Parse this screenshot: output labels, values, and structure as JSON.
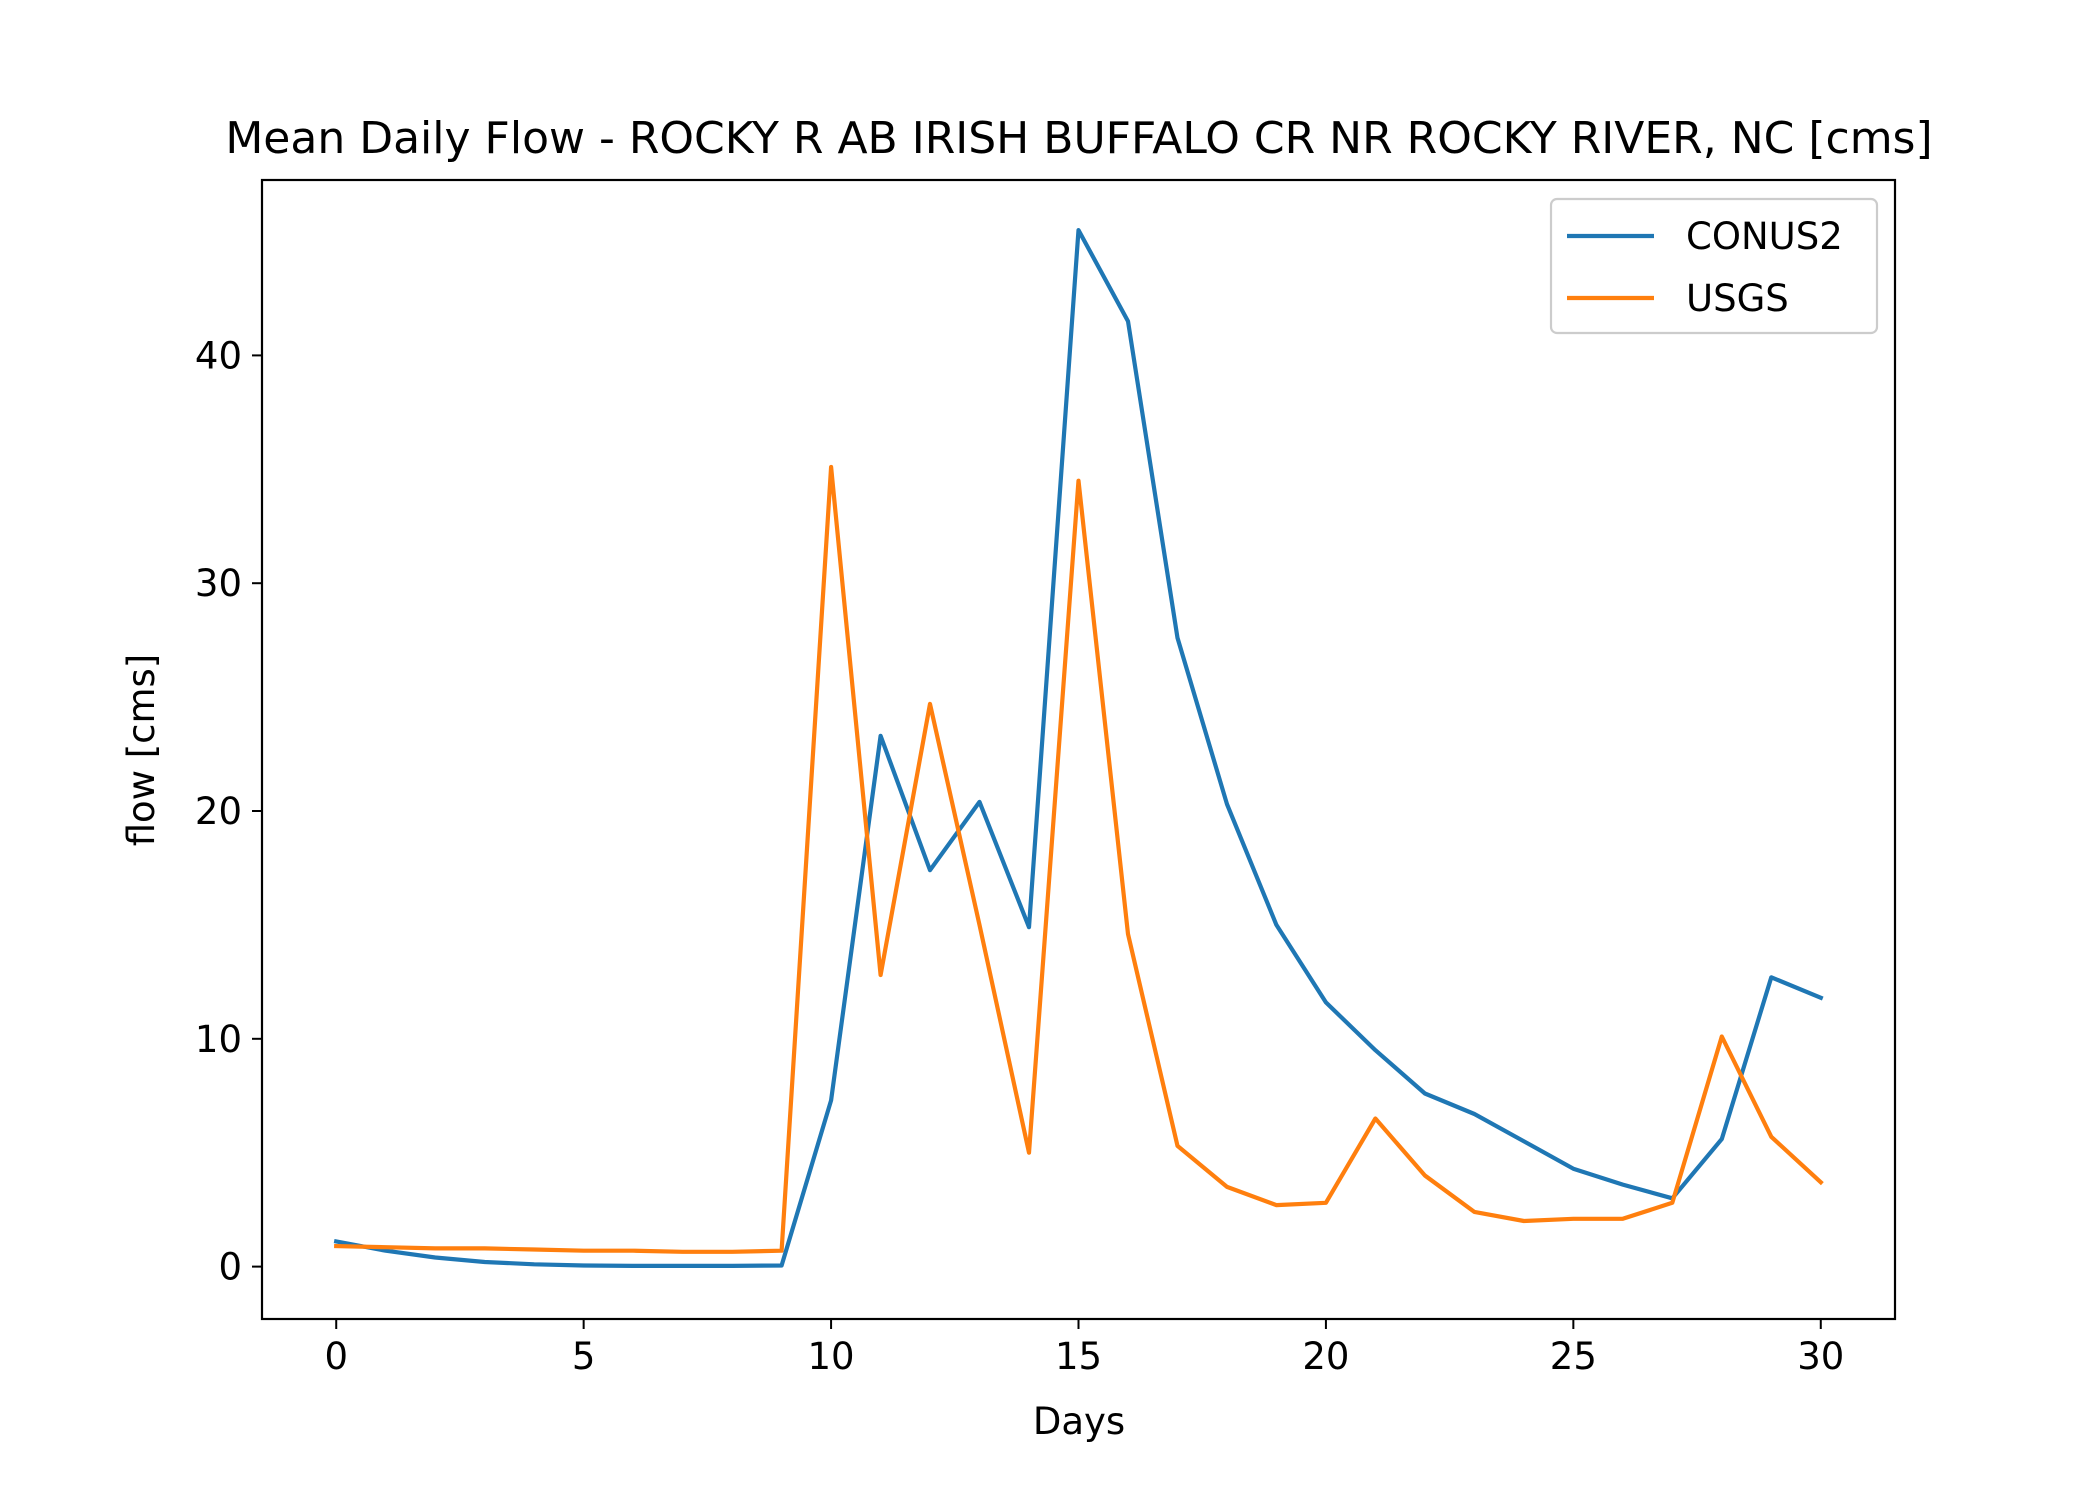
{
  "chart_data": {
    "type": "line",
    "title": "Mean Daily Flow - ROCKY R AB IRISH BUFFALO CR NR ROCKY RIVER, NC [cms]",
    "xlabel": "Days",
    "ylabel": "flow [cms]",
    "xlim": [
      -1.5,
      31.5
    ],
    "ylim": [
      -2.3,
      47.7
    ],
    "xticks": [
      0,
      5,
      10,
      15,
      20,
      25,
      30
    ],
    "yticks": [
      0,
      10,
      20,
      30,
      40
    ],
    "grid": false,
    "legend_position": "top-right",
    "x": [
      0,
      1,
      2,
      3,
      4,
      5,
      6,
      7,
      8,
      9,
      10,
      11,
      12,
      13,
      14,
      15,
      16,
      17,
      18,
      19,
      20,
      21,
      22,
      23,
      24,
      25,
      26,
      27,
      28,
      29,
      30
    ],
    "series": [
      {
        "name": "CONUS2",
        "color": "#1f77b4",
        "values": [
          1.1,
          0.7,
          0.4,
          0.2,
          0.1,
          0.05,
          0.03,
          0.03,
          0.03,
          0.05,
          7.3,
          23.3,
          17.4,
          20.4,
          14.9,
          45.5,
          41.5,
          27.6,
          20.3,
          15.0,
          11.6,
          9.5,
          7.6,
          6.7,
          5.5,
          4.3,
          3.6,
          3.0,
          5.6,
          12.7,
          11.8
        ]
      },
      {
        "name": "USGS",
        "color": "#ff7f0e",
        "values": [
          0.9,
          0.85,
          0.8,
          0.8,
          0.75,
          0.7,
          0.7,
          0.65,
          0.65,
          0.7,
          35.1,
          12.8,
          24.7,
          15.0,
          5.0,
          34.5,
          14.6,
          5.3,
          3.5,
          2.7,
          2.8,
          6.5,
          4.0,
          2.4,
          2.0,
          2.1,
          2.1,
          2.8,
          10.1,
          5.7,
          3.7
        ]
      }
    ]
  }
}
